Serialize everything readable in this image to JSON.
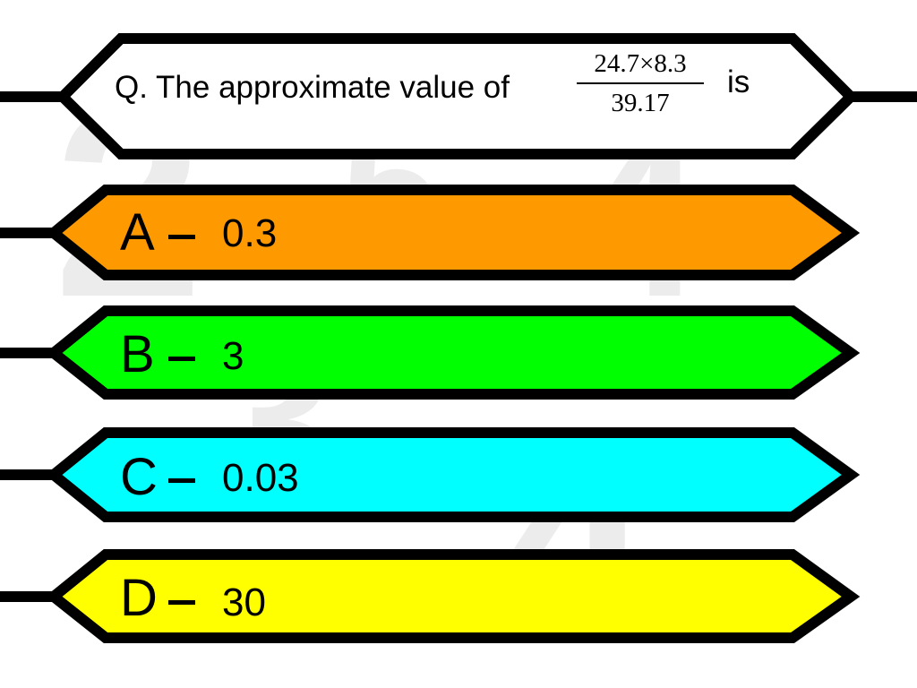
{
  "question": {
    "prefix": "Q. The approximate value of",
    "numerator": "24.7×8.3",
    "denominator": "39.17",
    "suffix": "is"
  },
  "options": [
    {
      "letter": "A",
      "value": "0.3",
      "color": "#ff9900"
    },
    {
      "letter": "B",
      "value": "3",
      "color": "#00ff00"
    },
    {
      "letter": "C",
      "value": "0.03",
      "color": "#00ffff"
    },
    {
      "letter": "D",
      "value": "30",
      "color": "#ffff00"
    }
  ],
  "colors": {
    "background": "#ffffff",
    "outline": "#000000",
    "question_box": "#ffffff",
    "watermark": "#ececec"
  }
}
